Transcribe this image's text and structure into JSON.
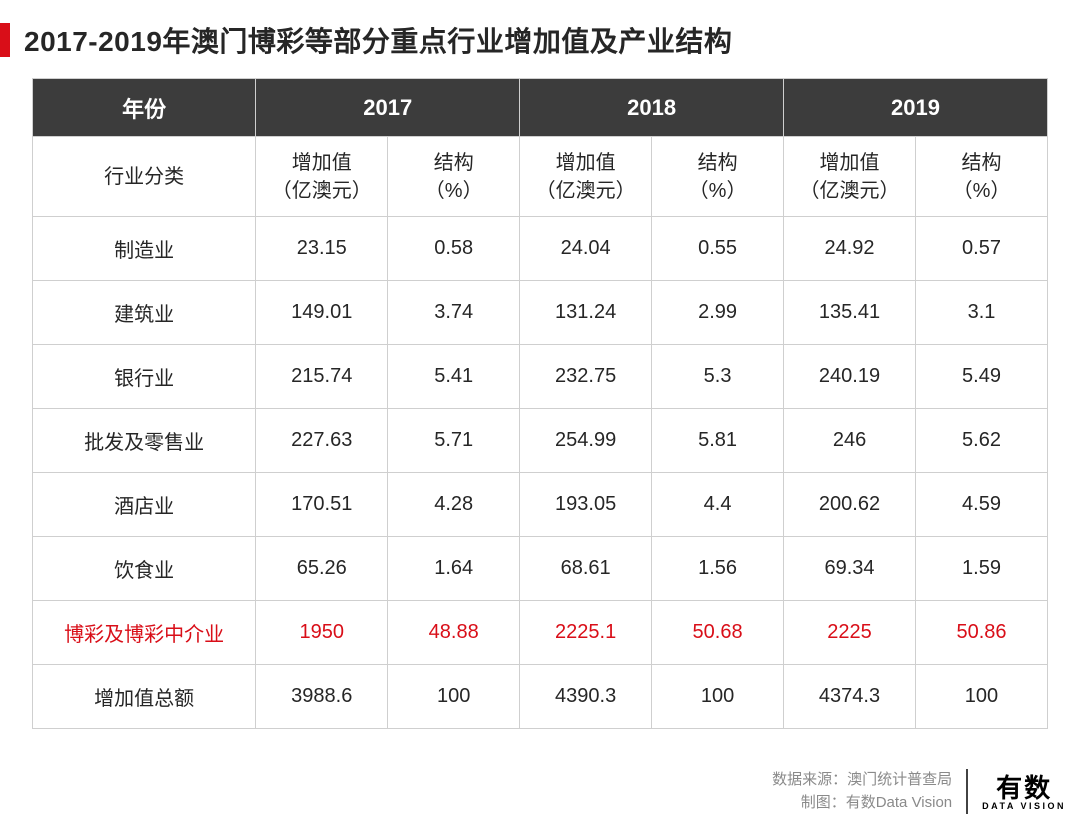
{
  "title": "2017-2019年澳门博彩等部分重点行业增加值及产业结构",
  "colors": {
    "accent": "#d90e18",
    "header_bg": "#3c3c3c",
    "header_text": "#ffffff",
    "border": "#cfcfcf",
    "text": "#262626",
    "footer_text": "#8a8a8a"
  },
  "table": {
    "year_header_label": "年份",
    "years": [
      "2017",
      "2018",
      "2019"
    ],
    "category_header_label": "行业分类",
    "sub_headers": {
      "value": "增加值\n（亿澳元）",
      "pct": "结构\n（%）"
    },
    "rows": [
      {
        "label": "制造业",
        "v1": "23.15",
        "p1": "0.58",
        "v2": "24.04",
        "p2": "0.55",
        "v3": "24.92",
        "p3": "0.57",
        "highlight": false
      },
      {
        "label": "建筑业",
        "v1": "149.01",
        "p1": "3.74",
        "v2": "131.24",
        "p2": "2.99",
        "v3": "135.41",
        "p3": "3.1",
        "highlight": false
      },
      {
        "label": "银行业",
        "v1": "215.74",
        "p1": "5.41",
        "v2": "232.75",
        "p2": "5.3",
        "v3": "240.19",
        "p3": "5.49",
        "highlight": false
      },
      {
        "label": "批发及零售业",
        "v1": "227.63",
        "p1": "5.71",
        "v2": "254.99",
        "p2": "5.81",
        "v3": "246",
        "p3": "5.62",
        "highlight": false
      },
      {
        "label": "酒店业",
        "v1": "170.51",
        "p1": "4.28",
        "v2": "193.05",
        "p2": "4.4",
        "v3": "200.62",
        "p3": "4.59",
        "highlight": false
      },
      {
        "label": "饮食业",
        "v1": "65.26",
        "p1": "1.64",
        "v2": "68.61",
        "p2": "1.56",
        "v3": "69.34",
        "p3": "1.59",
        "highlight": false
      },
      {
        "label": "博彩及博彩中介业",
        "v1": "1950",
        "p1": "48.88",
        "v2": "2225.1",
        "p2": "50.68",
        "v3": "2225",
        "p3": "50.86",
        "highlight": true
      },
      {
        "label": "增加值总额",
        "v1": "3988.6",
        "p1": "100",
        "v2": "4390.3",
        "p2": "100",
        "v3": "4374.3",
        "p3": "100",
        "highlight": false
      }
    ]
  },
  "footer": {
    "source_label": "数据来源：",
    "source_value": "澳门统计普查局",
    "credit_label": "制图：",
    "credit_value": "有数Data Vision",
    "logo_cn": "有数",
    "logo_en": "DATA VISION"
  }
}
